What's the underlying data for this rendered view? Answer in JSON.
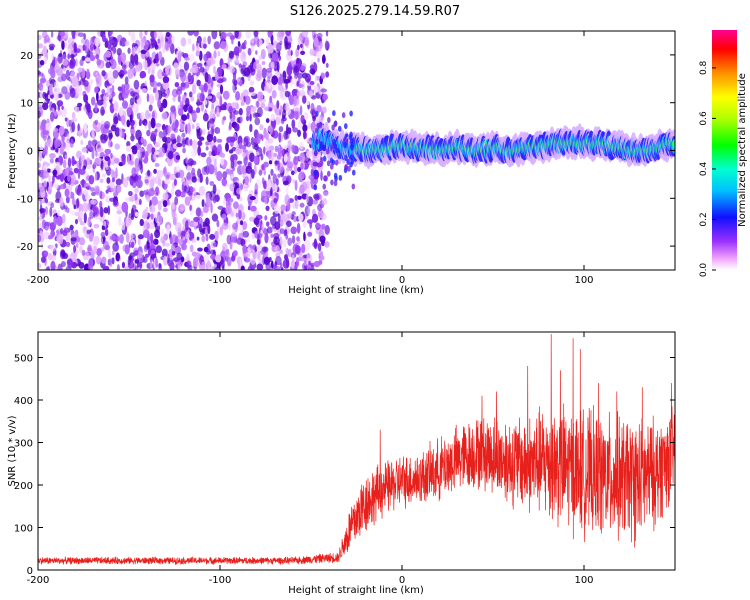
{
  "figure_title": "S126.2025.279.14.59.R07",
  "colors": {
    "snr_line": "#e8201c",
    "spectrum_noise": "#7a28e0",
    "axis": "#000000"
  },
  "chart_data": [
    {
      "type": "heatmap",
      "xlabel": "Height of straight line (km)",
      "ylabel": "Frequency (Hz)",
      "xlim": [
        -200,
        150
      ],
      "ylim": [
        -25,
        25
      ],
      "xticks": [
        -200,
        -100,
        0,
        100
      ],
      "xtick_labels": [
        "-200",
        "-100",
        "0",
        "100"
      ],
      "yticks": [
        -20,
        -10,
        0,
        10,
        20
      ],
      "ytick_labels": [
        "-20",
        "-10",
        "0",
        "10",
        "20"
      ],
      "noise_region_x": [
        -200,
        -45
      ],
      "signal_center_hz": [
        {
          "x": -45,
          "y": 3
        },
        {
          "x": -40,
          "y": 2
        },
        {
          "x": -35,
          "y": 1
        },
        {
          "x": -30,
          "y": 0.5
        },
        {
          "x": -20,
          "y": 0
        },
        {
          "x": -10,
          "y": 0.3
        },
        {
          "x": 0,
          "y": 1
        },
        {
          "x": 10,
          "y": 0.5
        },
        {
          "x": 20,
          "y": 0
        },
        {
          "x": 30,
          "y": 0.6
        },
        {
          "x": 40,
          "y": 0
        },
        {
          "x": 50,
          "y": 0.5
        },
        {
          "x": 60,
          "y": 0
        },
        {
          "x": 70,
          "y": 0.5
        },
        {
          "x": 80,
          "y": 1.2
        },
        {
          "x": 90,
          "y": 1.5
        },
        {
          "x": 100,
          "y": 1.6
        },
        {
          "x": 110,
          "y": 1.5
        },
        {
          "x": 120,
          "y": 0.5
        },
        {
          "x": 130,
          "y": 0
        },
        {
          "x": 140,
          "y": 0.5
        },
        {
          "x": 150,
          "y": 1.5
        }
      ],
      "colorbar": {
        "label": "Normalized spectral amplitude",
        "range": [
          0,
          0.95
        ],
        "ticks": [
          0.0,
          0.2,
          0.4,
          0.6,
          0.8
        ],
        "tick_labels": [
          "0.0",
          "0.2",
          "0.4",
          "0.6",
          "0.8"
        ]
      }
    },
    {
      "type": "line",
      "xlabel": "Height of straight line (km)",
      "ylabel": "SNR (10 * v/v)",
      "xlim": [
        -200,
        150
      ],
      "ylim": [
        0,
        560
      ],
      "xticks": [
        -200,
        -100,
        0,
        100
      ],
      "xtick_labels": [
        "-200",
        "-100",
        "0",
        "100"
      ],
      "yticks": [
        0,
        100,
        200,
        300,
        400,
        500
      ],
      "ytick_labels": [
        "0",
        "100",
        "200",
        "300",
        "400",
        "500"
      ],
      "series": [
        {
          "name": "SNR",
          "envelope": [
            {
              "x": -200,
              "mean": 22,
              "spread": 8
            },
            {
              "x": -60,
              "mean": 22,
              "spread": 8
            },
            {
              "x": -35,
              "mean": 30,
              "spread": 12
            },
            {
              "x": -28,
              "mean": 100,
              "spread": 60
            },
            {
              "x": -20,
              "mean": 160,
              "spread": 70
            },
            {
              "x": -10,
              "mean": 190,
              "spread": 60
            },
            {
              "x": 0,
              "mean": 210,
              "spread": 60
            },
            {
              "x": 10,
              "mean": 215,
              "spread": 60
            },
            {
              "x": 20,
              "mean": 235,
              "spread": 70
            },
            {
              "x": 30,
              "mean": 260,
              "spread": 75
            },
            {
              "x": 40,
              "mean": 275,
              "spread": 80
            },
            {
              "x": 50,
              "mean": 270,
              "spread": 90
            },
            {
              "x": 60,
              "mean": 255,
              "spread": 100
            },
            {
              "x": 70,
              "mean": 250,
              "spread": 110
            },
            {
              "x": 80,
              "mean": 255,
              "spread": 130
            },
            {
              "x": 90,
              "mean": 240,
              "spread": 140
            },
            {
              "x": 100,
              "mean": 230,
              "spread": 140
            },
            {
              "x": 110,
              "mean": 220,
              "spread": 140
            },
            {
              "x": 120,
              "mean": 215,
              "spread": 140
            },
            {
              "x": 130,
              "mean": 210,
              "spread": 140
            },
            {
              "x": 140,
              "mean": 230,
              "spread": 120
            },
            {
              "x": 150,
              "mean": 280,
              "spread": 100
            }
          ],
          "peaks": [
            {
              "x": 82,
              "y": 555
            },
            {
              "x": 94,
              "y": 545
            },
            {
              "x": 98,
              "y": 520
            },
            {
              "x": 87,
              "y": 470
            },
            {
              "x": 69,
              "y": 480
            },
            {
              "x": 108,
              "y": 440
            },
            {
              "x": 52,
              "y": 420
            },
            {
              "x": 44,
              "y": 410
            },
            {
              "x": 118,
              "y": 420
            },
            {
              "x": 132,
              "y": 430
            },
            {
              "x": 148,
              "y": 440
            },
            {
              "x": -12,
              "y": 330
            }
          ]
        }
      ]
    }
  ]
}
